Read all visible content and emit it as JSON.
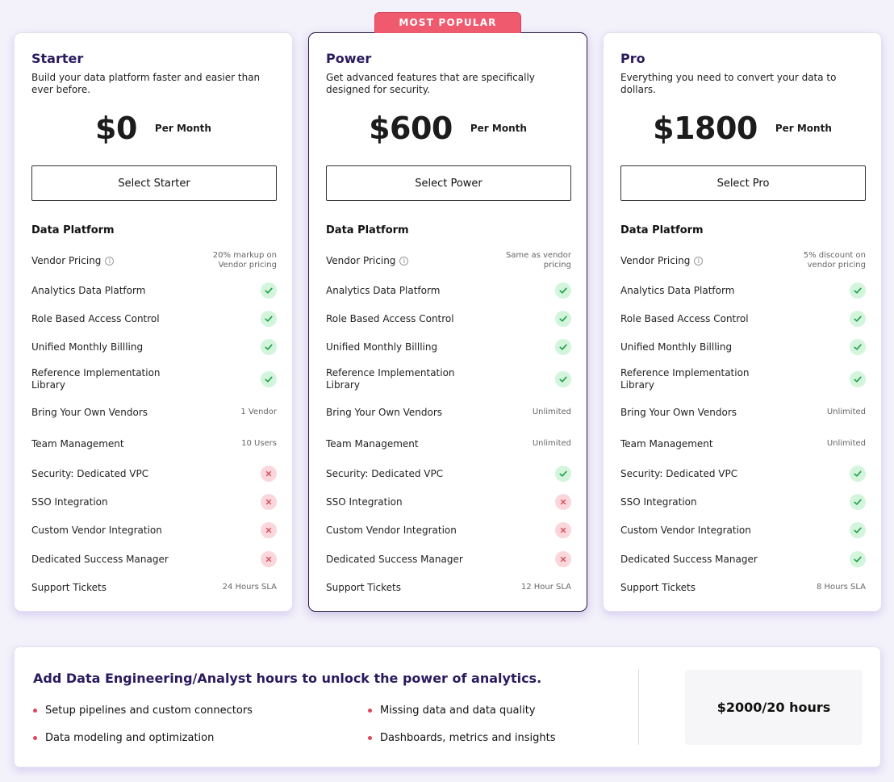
{
  "plans": [
    {
      "name": "Starter",
      "description": "Build your data platform faster and easier than ever before.",
      "price": "$0",
      "period": "Per Month",
      "cta": "Select Starter",
      "featured": false,
      "section": "Data Platform",
      "features": [
        {
          "label": "Vendor Pricing",
          "info": true,
          "type": "text",
          "value": "20% markup on Vendor pricing"
        },
        {
          "label": "Analytics Data Platform",
          "type": "check"
        },
        {
          "label": "Role Based Access Control",
          "type": "check"
        },
        {
          "label": "Unified Monthly Billling",
          "type": "check"
        },
        {
          "label": "Reference Implementation Library",
          "type": "check"
        },
        {
          "label": "Bring Your Own Vendors",
          "type": "text",
          "value": "1 Vendor"
        },
        {
          "label": "Team Management",
          "type": "text",
          "value": "10 Users"
        },
        {
          "label": "Security: Dedicated VPC",
          "type": "cross"
        },
        {
          "label": "SSO Integration",
          "type": "cross"
        },
        {
          "label": "Custom Vendor Integration",
          "type": "cross"
        },
        {
          "label": "Dedicated Success Manager",
          "type": "cross"
        },
        {
          "label": "Support Tickets",
          "type": "text",
          "value": "24 Hours SLA"
        }
      ]
    },
    {
      "name": "Power",
      "description": "Get advanced features that are specifically designed for security.",
      "price": "$600",
      "period": "Per Month",
      "cta": "Select Power",
      "featured": true,
      "badge": "MOST POPULAR",
      "section": "Data Platform",
      "features": [
        {
          "label": "Vendor Pricing",
          "info": true,
          "type": "text",
          "value": "Same as vendor pricing"
        },
        {
          "label": "Analytics Data Platform",
          "type": "check"
        },
        {
          "label": "Role Based Access Control",
          "type": "check"
        },
        {
          "label": "Unified Monthly Billling",
          "type": "check"
        },
        {
          "label": "Reference Implementation Library",
          "type": "check"
        },
        {
          "label": "Bring Your Own Vendors",
          "type": "text",
          "value": "Unlimited"
        },
        {
          "label": "Team Management",
          "type": "text",
          "value": "Unlimited"
        },
        {
          "label": "Security: Dedicated VPC",
          "type": "check"
        },
        {
          "label": "SSO Integration",
          "type": "cross"
        },
        {
          "label": "Custom Vendor Integration",
          "type": "cross"
        },
        {
          "label": "Dedicated Success Manager",
          "type": "cross"
        },
        {
          "label": "Support Tickets",
          "type": "text",
          "value": "12 Hour SLA"
        }
      ]
    },
    {
      "name": "Pro",
      "description": "Everything you need to convert your data to dollars.",
      "price": "$1800",
      "period": "Per Month",
      "cta": "Select Pro",
      "featured": false,
      "section": "Data Platform",
      "features": [
        {
          "label": "Vendor Pricing",
          "info": true,
          "type": "text",
          "value": "5% discount on vendor pricing"
        },
        {
          "label": "Analytics Data Platform",
          "type": "check"
        },
        {
          "label": "Role Based Access Control",
          "type": "check"
        },
        {
          "label": "Unified Monthly Billling",
          "type": "check"
        },
        {
          "label": "Reference Implementation Library",
          "type": "check"
        },
        {
          "label": "Bring Your Own Vendors",
          "type": "text",
          "value": "Unlimited"
        },
        {
          "label": "Team Management",
          "type": "text",
          "value": "Unlimited"
        },
        {
          "label": "Security: Dedicated VPC",
          "type": "check"
        },
        {
          "label": "SSO Integration",
          "type": "check"
        },
        {
          "label": "Custom Vendor Integration",
          "type": "check"
        },
        {
          "label": "Dedicated Success Manager",
          "type": "check"
        },
        {
          "label": "Support Tickets",
          "type": "text",
          "value": "8 Hours SLA"
        }
      ]
    }
  ],
  "addon": {
    "title": "Add Data Engineering/Analyst hours to unlock the power of analytics.",
    "bullets": [
      "Setup pipelines and custom connectors",
      "Missing data and data quality",
      "Data modeling and optimization",
      "Dashboards, metrics and insights"
    ],
    "price": "$2000/20 hours"
  },
  "colors": {
    "accent": "#2a1a5e",
    "badge": "#ef5a6f",
    "check_bg": "#d2f5dc",
    "check_fg": "#1e9e4a",
    "cross_bg": "#fbd7dc",
    "cross_fg": "#d24a5a"
  },
  "icons": {
    "included": "check-icon",
    "excluded": "cross-icon",
    "info": "info-icon",
    "bullet": "bullet-dot-icon"
  }
}
